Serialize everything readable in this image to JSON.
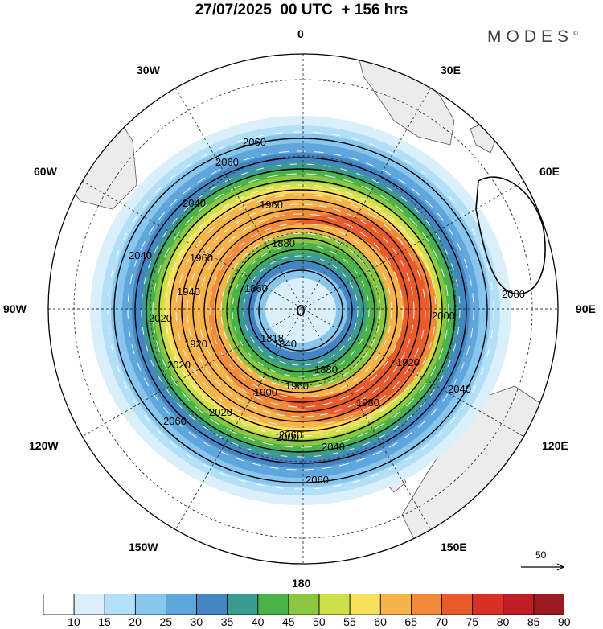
{
  "header": {
    "title": "27/07/2025  00 UTC  + 156 hrs",
    "brand": "MODES"
  },
  "map": {
    "projection": "south-polar-stereographic",
    "longitude_labels": [
      "0",
      "30E",
      "60E",
      "90E",
      "120E",
      "150E",
      "180",
      "150W",
      "120W",
      "90W",
      "60W",
      "30W"
    ],
    "contour_labels": [
      "2060",
      "2060",
      "2060",
      "2060",
      "2060",
      "2040",
      "2040",
      "2040",
      "2040",
      "2020",
      "2020",
      "2020",
      "2000",
      "2000",
      "1980",
      "1960",
      "1960",
      "1960",
      "1940",
      "1920",
      "1920",
      "1900",
      "1880",
      "1880",
      "1860",
      "1840",
      "1818",
      "2080"
    ],
    "colors": {
      "land": "#ececec",
      "coast": "#555555",
      "contour": "#000000",
      "streamline": "#ffffff"
    },
    "vector_reference": {
      "label": "50"
    }
  },
  "colorbar": {
    "ticks": [
      "10",
      "15",
      "20",
      "25",
      "30",
      "35",
      "40",
      "45",
      "50",
      "55",
      "60",
      "65",
      "70",
      "75",
      "80",
      "85",
      "90"
    ],
    "colors": [
      "#ffffff",
      "#d9f0fb",
      "#b3e0f6",
      "#89c6ee",
      "#5fa6dc",
      "#4486c3",
      "#3a9b8e",
      "#49b249",
      "#8ac63f",
      "#cde04a",
      "#f8e05c",
      "#f8b24a",
      "#f28a3a",
      "#ea5b2c",
      "#d93026",
      "#bf1f24",
      "#9b1c1f"
    ]
  }
}
